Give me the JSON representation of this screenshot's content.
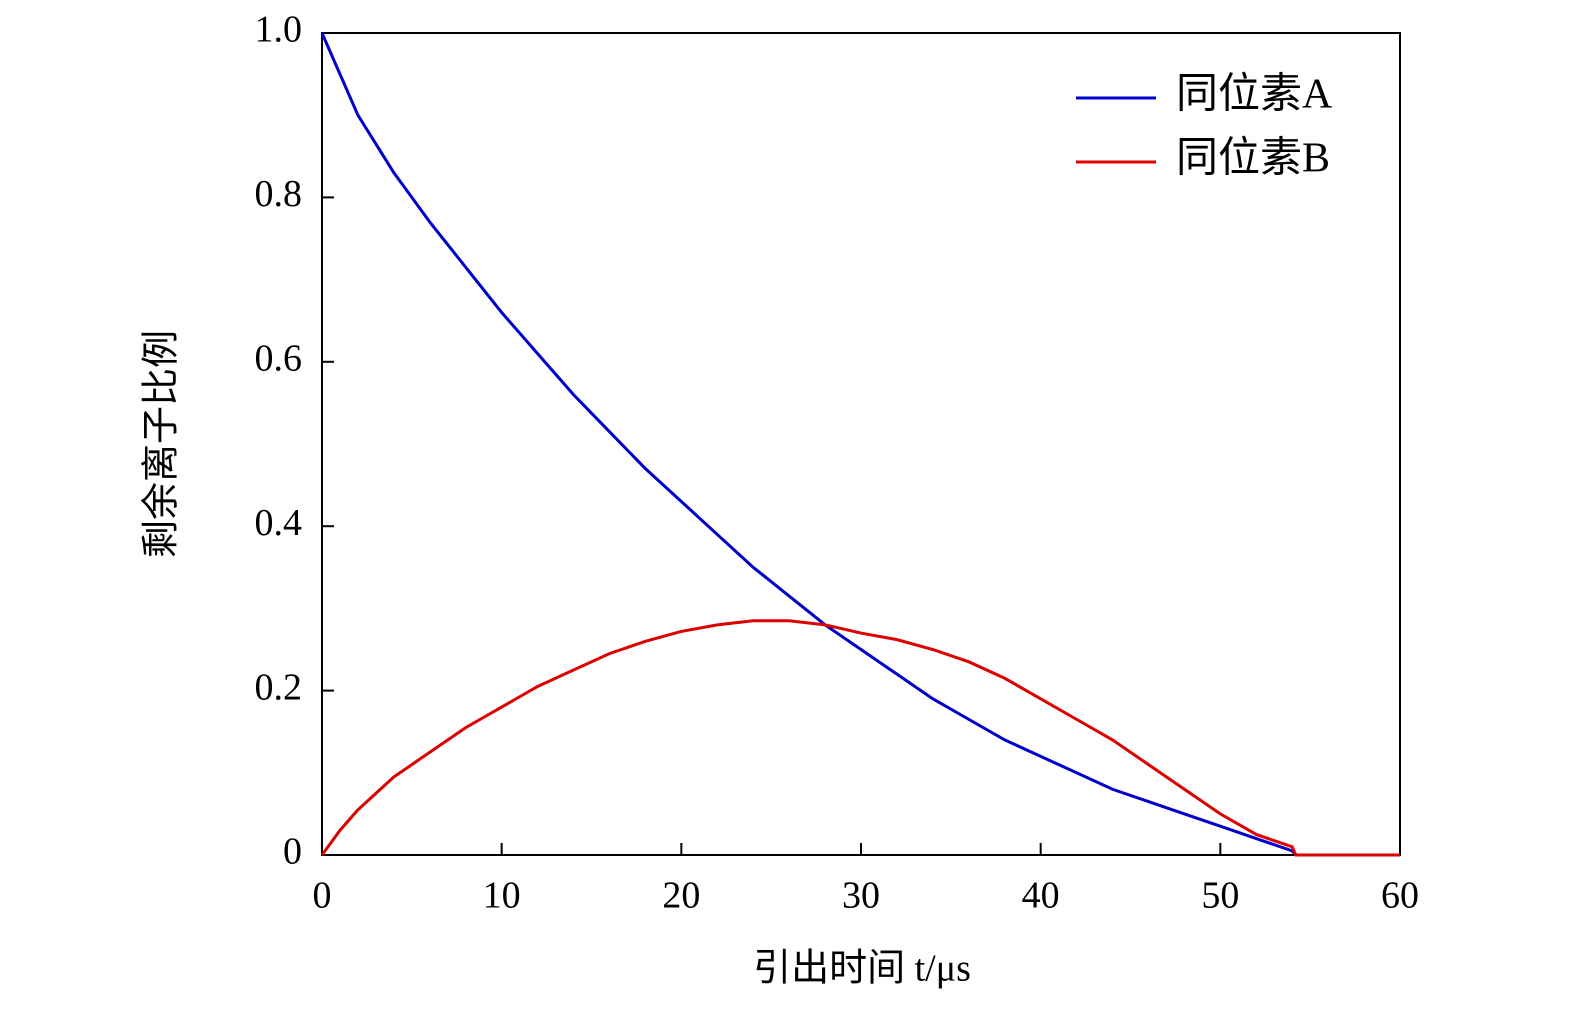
{
  "chart_data": {
    "type": "line",
    "xlabel": "引出时间 t/μs",
    "ylabel": "剩余离子比例",
    "x": [
      0,
      1,
      2,
      3,
      4,
      5,
      6,
      8,
      10,
      12,
      14,
      16,
      18,
      20,
      22,
      24,
      26,
      28,
      30,
      32,
      34,
      36,
      38,
      40,
      42,
      44,
      46,
      48,
      50,
      52,
      54,
      54.2,
      55,
      60
    ],
    "series": [
      {
        "name": "同位素A",
        "color": "#0000cc",
        "values": [
          1.0,
          0.95,
          0.9,
          0.865,
          0.83,
          0.8,
          0.77,
          0.715,
          0.66,
          0.61,
          0.56,
          0.515,
          0.47,
          0.43,
          0.39,
          0.35,
          0.315,
          0.28,
          0.25,
          0.22,
          0.19,
          0.165,
          0.14,
          0.12,
          0.1,
          0.08,
          0.065,
          0.05,
          0.035,
          0.02,
          0.005,
          0,
          0,
          0
        ]
      },
      {
        "name": "同位素B",
        "color": "#dd0000",
        "values": [
          0,
          0.03,
          0.055,
          0.075,
          0.095,
          0.11,
          0.125,
          0.155,
          0.18,
          0.205,
          0.225,
          0.245,
          0.26,
          0.272,
          0.28,
          0.285,
          0.285,
          0.28,
          0.27,
          0.262,
          0.25,
          0.235,
          0.215,
          0.19,
          0.165,
          0.14,
          0.11,
          0.08,
          0.05,
          0.025,
          0.01,
          0,
          0,
          0
        ]
      }
    ],
    "xlim": [
      0,
      60
    ],
    "xticks": [
      0,
      10,
      20,
      30,
      40,
      50,
      60
    ],
    "ylim": [
      0,
      1
    ],
    "yticks": [
      0,
      0.2,
      0.4,
      0.6,
      0.8,
      {
        "value": 1,
        "label": "1.0"
      }
    ],
    "legend": "upper right"
  }
}
